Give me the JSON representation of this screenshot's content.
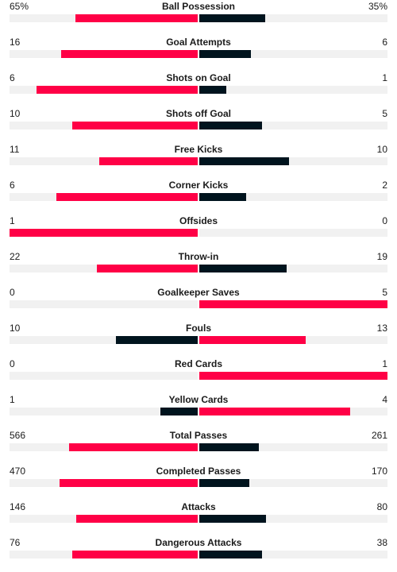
{
  "colors": {
    "leader": "#ff0046",
    "trailer": "#00141e",
    "track": "#f1f1f1"
  },
  "stats": [
    {
      "label": "Ball Possession",
      "home": "65%",
      "away": "35%",
      "home_share": 0.65,
      "away_share": 0.35
    },
    {
      "label": "Goal Attempts",
      "home": "16",
      "away": "6",
      "home_share": 0.727,
      "away_share": 0.273
    },
    {
      "label": "Shots on Goal",
      "home": "6",
      "away": "1",
      "home_share": 0.857,
      "away_share": 0.143
    },
    {
      "label": "Shots off Goal",
      "home": "10",
      "away": "5",
      "home_share": 0.667,
      "away_share": 0.333
    },
    {
      "label": "Free Kicks",
      "home": "11",
      "away": "10",
      "home_share": 0.524,
      "away_share": 0.476
    },
    {
      "label": "Corner Kicks",
      "home": "6",
      "away": "2",
      "home_share": 0.75,
      "away_share": 0.25
    },
    {
      "label": "Offsides",
      "home": "1",
      "away": "0",
      "home_share": 1.0,
      "away_share": 0.0
    },
    {
      "label": "Throw-in",
      "home": "22",
      "away": "19",
      "home_share": 0.537,
      "away_share": 0.463
    },
    {
      "label": "Goalkeeper Saves",
      "home": "0",
      "away": "5",
      "home_share": 0.0,
      "away_share": 1.0
    },
    {
      "label": "Fouls",
      "home": "10",
      "away": "13",
      "home_share": 0.435,
      "away_share": 0.565
    },
    {
      "label": "Red Cards",
      "home": "0",
      "away": "1",
      "home_share": 0.0,
      "away_share": 1.0
    },
    {
      "label": "Yellow Cards",
      "home": "1",
      "away": "4",
      "home_share": 0.2,
      "away_share": 0.8
    },
    {
      "label": "Total Passes",
      "home": "566",
      "away": "261",
      "home_share": 0.684,
      "away_share": 0.316
    },
    {
      "label": "Completed Passes",
      "home": "470",
      "away": "170",
      "home_share": 0.734,
      "away_share": 0.266
    },
    {
      "label": "Attacks",
      "home": "146",
      "away": "80",
      "home_share": 0.646,
      "away_share": 0.354
    },
    {
      "label": "Dangerous Attacks",
      "home": "76",
      "away": "38",
      "home_share": 0.667,
      "away_share": 0.333
    }
  ]
}
